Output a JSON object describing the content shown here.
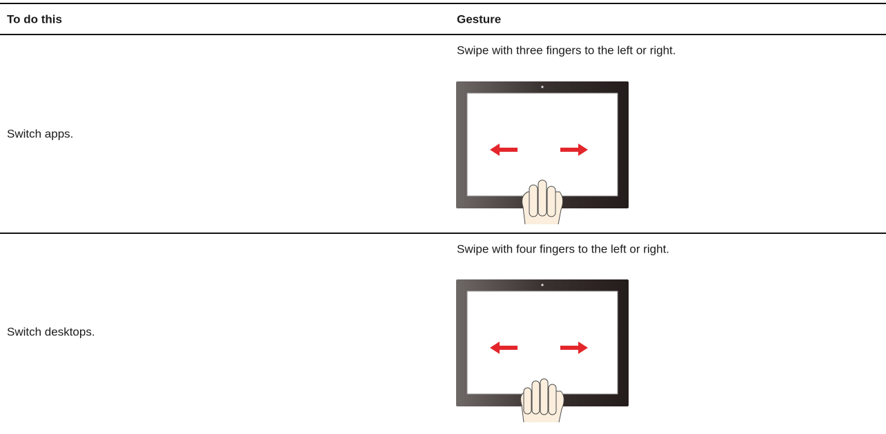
{
  "table": {
    "headers": [
      "To do this",
      "Gesture"
    ],
    "rows": [
      [
        "Switch apps.",
        "Swipe with three fingers to the left or right."
      ],
      [
        "Switch desktops.",
        "Swipe with four fingers to the left or right."
      ]
    ]
  }
}
